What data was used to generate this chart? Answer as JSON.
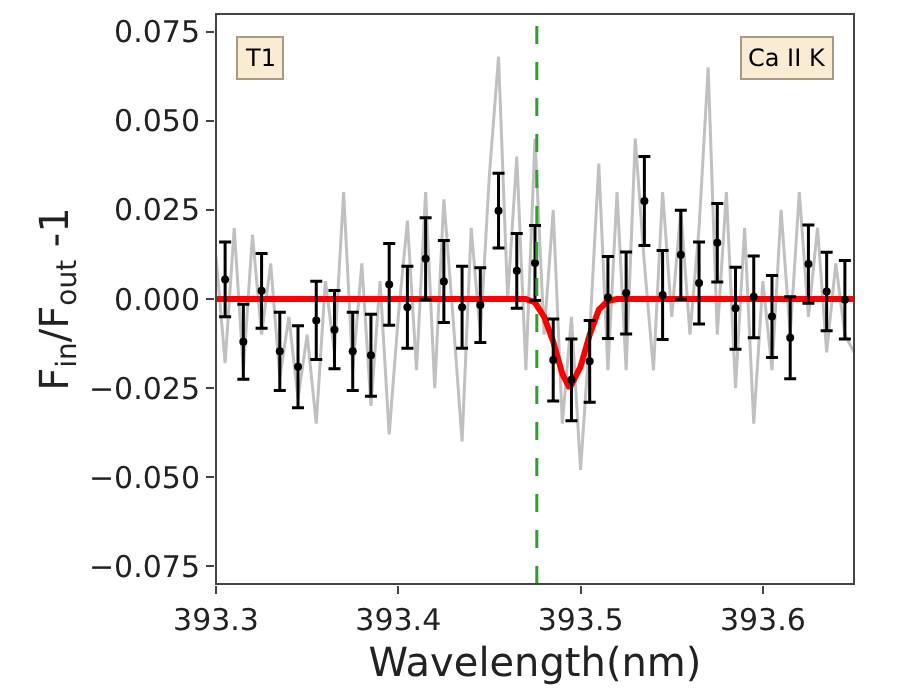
{
  "chart_data": {
    "type": "scatter",
    "xlabel": "Wavelength(nm)",
    "ylabel": "F$_{in}$/F$_{out}$ -1",
    "annotations": [
      "T1",
      "Ca II K"
    ],
    "xlim": [
      393.3,
      393.65
    ],
    "ylim": [
      -0.08,
      0.08
    ],
    "xticks": [
      393.3,
      393.4,
      393.5,
      393.6
    ],
    "yticks": [
      {
        "value": -0.075,
        "label": "−0.075"
      },
      {
        "value": -0.05,
        "label": "−0.050"
      },
      {
        "value": -0.025,
        "label": "−0.025"
      },
      {
        "value": 0,
        "label": "0.000"
      },
      {
        "value": 0.025,
        "label": "0.025"
      },
      {
        "value": 0.05,
        "label": "0.050"
      },
      {
        "value": 0.075,
        "label": "0.075"
      }
    ],
    "ref_lines": [
      {
        "axis": "x",
        "value": 393.476,
        "color": "#2ca02c",
        "line_style": "dashed"
      }
    ],
    "series": [
      {
        "type": "line",
        "color": "#c0c0c0",
        "marker": "none",
        "x": [
          393.3,
          393.305,
          393.31,
          393.315,
          393.32,
          393.325,
          393.33,
          393.335,
          393.34,
          393.345,
          393.35,
          393.355,
          393.36,
          393.365,
          393.37,
          393.375,
          393.38,
          393.385,
          393.39,
          393.395,
          393.4,
          393.405,
          393.41,
          393.415,
          393.42,
          393.425,
          393.43,
          393.435,
          393.44,
          393.445,
          393.45,
          393.455,
          393.46,
          393.465,
          393.47,
          393.475,
          393.48,
          393.485,
          393.49,
          393.495,
          393.5,
          393.505,
          393.51,
          393.515,
          393.52,
          393.525,
          393.53,
          393.535,
          393.54,
          393.545,
          393.55,
          393.555,
          393.56,
          393.565,
          393.57,
          393.575,
          393.58,
          393.585,
          393.59,
          393.595,
          393.6,
          393.605,
          393.61,
          393.615,
          393.62,
          393.625,
          393.63,
          393.635,
          393.64,
          393.645,
          393.65
        ],
        "values": [
          0.012,
          -0.018,
          0.02,
          -0.02,
          0.018,
          -0.01,
          0.01,
          -0.022,
          -0.005,
          -0.028,
          -0.01,
          -0.035,
          0.005,
          -0.015,
          0.03,
          -0.02,
          0.01,
          -0.03,
          0.005,
          -0.038,
          -0.005,
          0.022,
          -0.02,
          0.03,
          -0.025,
          0.028,
          -0.005,
          -0.04,
          0.02,
          -0.01,
          0.035,
          0.068,
          0.0,
          0.04,
          -0.02,
          0.045,
          -0.01,
          0.025,
          -0.035,
          -0.005,
          -0.048,
          -0.01,
          0.038,
          -0.02,
          0.03,
          -0.02,
          0.045,
          0.01,
          -0.02,
          0.03,
          -0.005,
          0.025,
          -0.01,
          0.02,
          0.065,
          -0.01,
          0.03,
          -0.025,
          0.02,
          -0.035,
          0.005,
          -0.02,
          0.025,
          -0.01,
          0.03,
          -0.005,
          0.02,
          -0.015,
          0.01,
          -0.01,
          -0.015
        ]
      },
      {
        "color": "#000000",
        "marker": "circle",
        "x": [
          393.305,
          393.315,
          393.325,
          393.335,
          393.345,
          393.355,
          393.365,
          393.375,
          393.385,
          393.395,
          393.405,
          393.415,
          393.425,
          393.435,
          393.445,
          393.455,
          393.465,
          393.475,
          393.485,
          393.495,
          393.505,
          393.515,
          393.525,
          393.535,
          393.545,
          393.555,
          393.565,
          393.575,
          393.585,
          393.595,
          393.605,
          393.615,
          393.625,
          393.635,
          393.645
        ],
        "values": [
          0.0055,
          -0.012,
          0.0023,
          -0.0147,
          -0.019,
          -0.006,
          -0.0086,
          -0.0147,
          -0.0158,
          0.0041,
          -0.0023,
          0.0113,
          0.0049,
          -0.0023,
          -0.0017,
          0.0248,
          0.0079,
          0.0101,
          -0.0171,
          -0.0227,
          -0.0175,
          0.0004,
          0.0017,
          0.0275,
          0.0011,
          0.0124,
          0.0045,
          0.0158,
          -0.0026,
          0.0006,
          -0.0049,
          -0.0109,
          0.0098,
          0.0021,
          -0.0002
        ],
        "errors": [
          0.0105,
          0.0105,
          0.0105,
          0.011,
          0.0115,
          0.011,
          0.011,
          0.011,
          0.0115,
          0.0115,
          0.0115,
          0.0115,
          0.0115,
          0.0115,
          0.0105,
          0.0105,
          0.0105,
          0.0105,
          0.0115,
          0.0115,
          0.0115,
          0.0115,
          0.0115,
          0.0125,
          0.0125,
          0.0125,
          0.0115,
          0.011,
          0.0115,
          0.0115,
          0.0115,
          0.0115,
          0.011,
          0.011,
          0.011
        ]
      },
      {
        "type": "line",
        "color": "#ff0000",
        "marker": "none",
        "x": [
          393.3,
          393.47,
          393.475,
          393.48,
          393.485,
          393.49,
          393.494,
          393.5,
          393.505,
          393.51,
          393.515,
          393.52,
          393.65
        ],
        "values": [
          0,
          0,
          -0.001,
          -0.005,
          -0.012,
          -0.021,
          -0.025,
          -0.019,
          -0.01,
          -0.003,
          -0.0005,
          0,
          0
        ]
      }
    ]
  }
}
